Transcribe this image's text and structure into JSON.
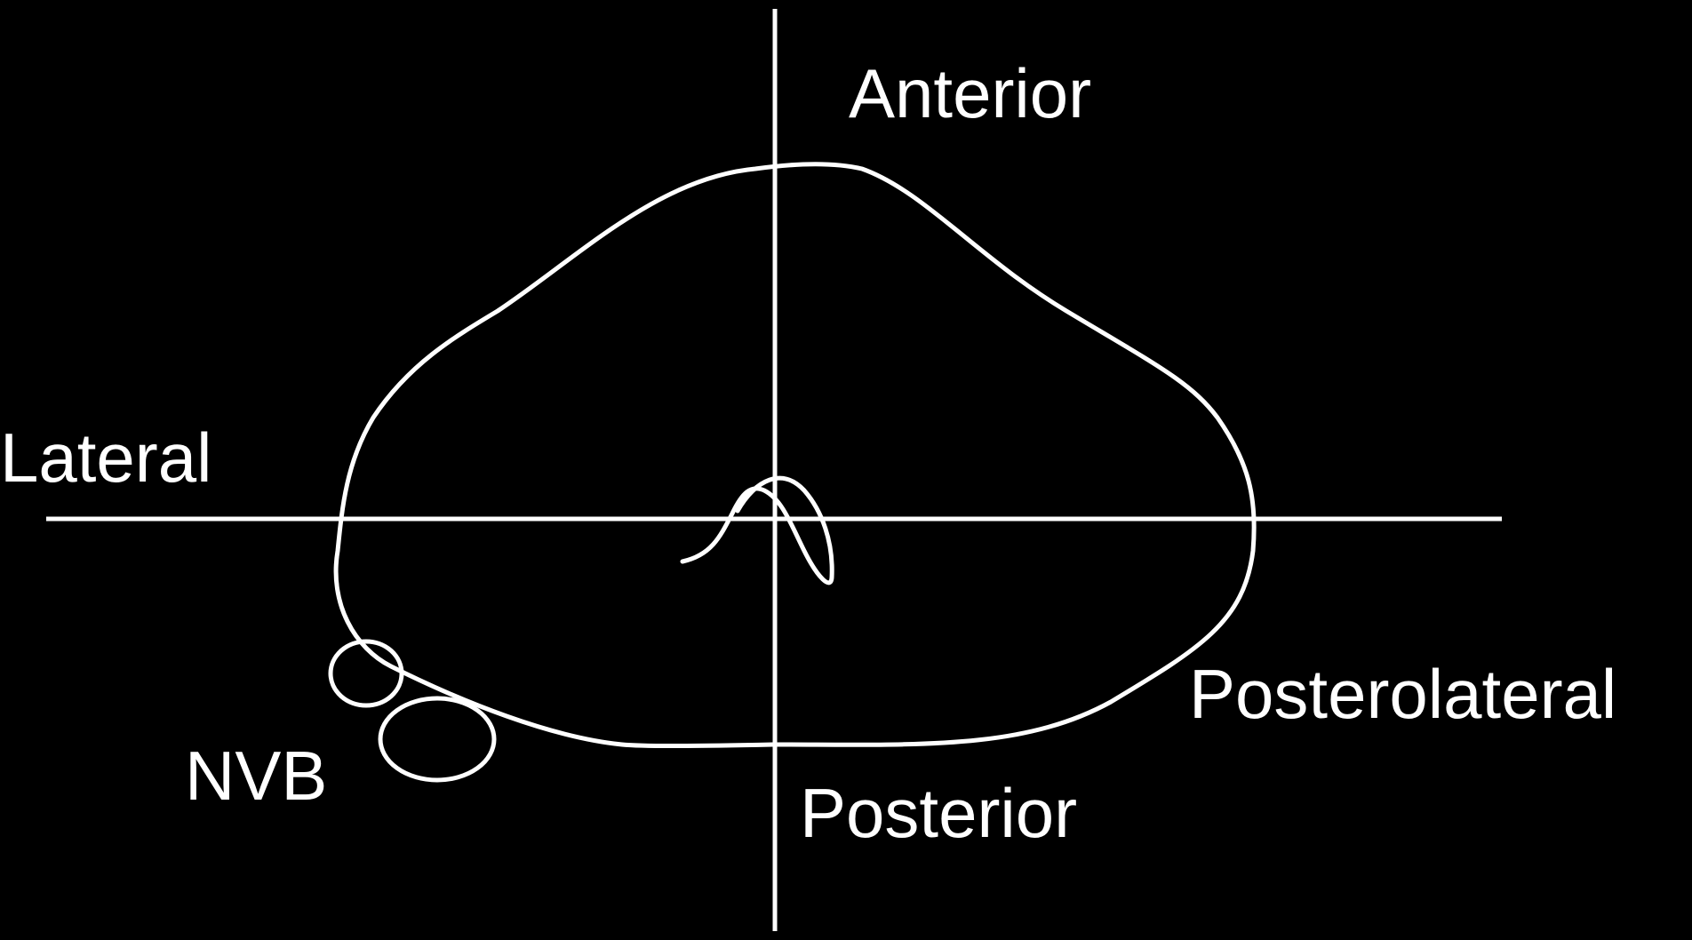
{
  "labels": {
    "anterior": "Anterior",
    "lateral": "Lateral",
    "posterolateral": "Posterolateral",
    "posterior": "Posterior",
    "nvb": "NVB"
  },
  "colors": {
    "background": "#000000",
    "foreground": "#ffffff"
  }
}
